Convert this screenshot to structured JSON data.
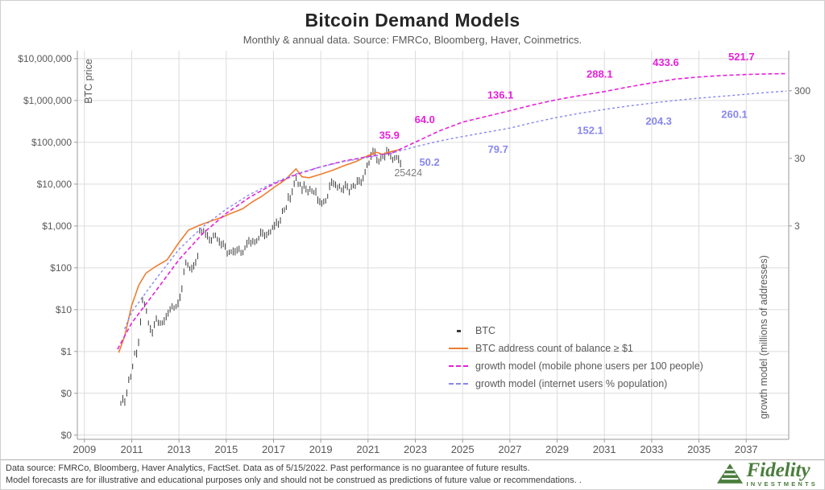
{
  "header": {
    "title": "Bitcoin Demand Models",
    "subtitle": "Monthly & annual data.  Source: FMRCo, Bloomberg, Haver, Coinmetrics."
  },
  "legend": {
    "items": [
      {
        "label": "BTC",
        "marker": "dot",
        "color": "#3a3a3a"
      },
      {
        "label": "BTC address count of balance ≥ $1",
        "marker": "solid",
        "color": "#ED7D31"
      },
      {
        "label": "growth model (mobile phone users per 100 people)",
        "marker": "dashed",
        "color": "#E621DB"
      },
      {
        "label": "growth model (internet users % population)",
        "marker": "dashed",
        "color": "#8787EF"
      }
    ]
  },
  "footer": {
    "line1": "Data source: FMRCo, Bloomberg, Haver Analytics, FactSet. Data as of 5/15/2022. Past performance is no guarantee of future results.",
    "line2": "Model forecasts are for illustrative and educational purposes only and should not be construed as predictions of future value or recommendations. .",
    "brand": {
      "name": "Fidelity",
      "sub": "INVESTMENTS",
      "color": "#4a7d3c"
    }
  },
  "chart_data": {
    "type": "line",
    "title": "Bitcoin Demand Models",
    "grid": true,
    "x_axis": {
      "range": [
        2008.7,
        2038.8
      ],
      "ticks": [
        2009,
        2011,
        2013,
        2015,
        2017,
        2019,
        2021,
        2023,
        2025,
        2027,
        2029,
        2031,
        2033,
        2035,
        2037
      ]
    },
    "left_axis": {
      "label": "BTC price",
      "log_range": [
        -2.1,
        7.19
      ],
      "ticks": [
        {
          "label": "$10,000,000",
          "value": 10000000
        },
        {
          "label": "$1,000,000",
          "value": 1000000
        },
        {
          "label": "$100,000",
          "value": 100000
        },
        {
          "label": "$10,000",
          "value": 10000
        },
        {
          "label": "$1,000",
          "value": 1000
        },
        {
          "label": "$100",
          "value": 100
        },
        {
          "label": "$10",
          "value": 10
        },
        {
          "label": "$1",
          "value": 1
        },
        {
          "label": "$0",
          "value": 0.1
        },
        {
          "label": "$0",
          "value": 0.01
        }
      ]
    },
    "right_axis": {
      "label": "growth model (millions of addresses)",
      "log_range": [
        -2.68,
        3.07
      ],
      "ticks": [
        {
          "label": "300",
          "value": 300
        },
        {
          "label": "30",
          "value": 30
        },
        {
          "label": "3",
          "value": 3
        }
      ]
    },
    "annotation": {
      "text": "25424",
      "year": 2022.7,
      "price": 15500
    },
    "series": [
      {
        "name": "BTC",
        "axis": "left",
        "style": "bars",
        "color": "#3a3a3a",
        "monthly": {
          "start_year": 2010.5417,
          "step": 0.0833333,
          "prices": [
            0.06,
            0.07,
            0.06,
            0.1,
            0.21,
            0.25,
            0.45,
            0.95,
            0.85,
            1.6,
            5.0,
            17,
            13.5,
            9.5,
            5.0,
            3.3,
            2.7,
            4.3,
            6.1,
            4.9,
            4.9,
            5.0,
            5.1,
            6.6,
            8.1,
            10.1,
            12.2,
            11.2,
            12.4,
            13.4,
            19,
            31,
            80,
            135,
            120,
            100,
            92,
            108,
            132,
            190,
            780,
            735,
            810,
            620,
            565,
            455,
            450,
            595,
            615,
            500,
            400,
            345,
            370,
            320,
            222,
            240,
            252,
            236,
            235,
            260,
            282,
            230,
            237,
            312,
            360,
            430,
            382,
            432,
            416,
            452,
            532,
            670,
            655,
            575,
            610,
            700,
            742,
            958,
            965,
            1190,
            1075,
            1350,
            2300,
            2480,
            2870,
            4700,
            4340,
            6470,
            10200,
            14100,
            10200,
            10300,
            6900,
            9240,
            7500,
            6400,
            7750,
            7000,
            6600,
            6300,
            4020,
            3740,
            3460,
            3850,
            4100,
            5320,
            8560,
            10800,
            10080,
            9600,
            8300,
            9150,
            7550,
            7200,
            9350,
            8550,
            6440,
            8620,
            9450,
            9140,
            11350,
            11650,
            10780,
            13800,
            19700,
            29000,
            33100,
            45200,
            58800,
            57750,
            37300,
            35040,
            41600,
            47150,
            43800,
            61300,
            57000,
            46200,
            38500,
            43200,
            45540,
            37650,
            30000
          ]
        }
      },
      {
        "name": "BTC address count of balance ≥ $1",
        "axis": "right",
        "style": "line",
        "color": "#ED7D31",
        "width": 1.6,
        "points": [
          [
            2010.45,
            0.04
          ],
          [
            2010.7,
            0.07
          ],
          [
            2011.0,
            0.2
          ],
          [
            2011.3,
            0.4
          ],
          [
            2011.6,
            0.6
          ],
          [
            2012.0,
            0.75
          ],
          [
            2012.5,
            0.95
          ],
          [
            2013.0,
            1.7
          ],
          [
            2013.4,
            2.6
          ],
          [
            2013.9,
            3.1
          ],
          [
            2014.3,
            3.5
          ],
          [
            2014.8,
            4.0
          ],
          [
            2015.2,
            4.6
          ],
          [
            2015.7,
            5.4
          ],
          [
            2016.1,
            6.8
          ],
          [
            2016.5,
            8.2
          ],
          [
            2017.0,
            11
          ],
          [
            2017.5,
            14.5
          ],
          [
            2017.95,
            21
          ],
          [
            2018.2,
            16
          ],
          [
            2018.5,
            15.5
          ],
          [
            2019.0,
            17.5
          ],
          [
            2019.5,
            20
          ],
          [
            2020.0,
            23.5
          ],
          [
            2020.5,
            27
          ],
          [
            2021.0,
            33
          ],
          [
            2021.35,
            37
          ],
          [
            2021.6,
            34.5
          ],
          [
            2022.0,
            38
          ],
          [
            2022.37,
            40.5
          ]
        ]
      },
      {
        "name": "growth model (mobile phone users per 100 people)",
        "axis": "right",
        "style": "dashed",
        "color": "#E621DB",
        "width": 1.6,
        "dash": "5 3",
        "label_dy": -18,
        "points": [
          [
            2010.4,
            0.045
          ],
          [
            2011,
            0.11
          ],
          [
            2012,
            0.32
          ],
          [
            2013,
            0.95
          ],
          [
            2014,
            2.3
          ],
          [
            2015,
            4.6
          ],
          [
            2016,
            8.0
          ],
          [
            2017,
            12.5
          ],
          [
            2018,
            17.5
          ],
          [
            2019,
            22.5
          ],
          [
            2020,
            27.5
          ],
          [
            2021,
            31.8
          ],
          [
            2022,
            35.9
          ],
          [
            2023,
            52
          ],
          [
            2024,
            76
          ],
          [
            2025,
            103
          ],
          [
            2026,
            125
          ],
          [
            2027,
            152
          ],
          [
            2028,
            186
          ],
          [
            2029,
            222
          ],
          [
            2030,
            256
          ],
          [
            2031,
            292
          ],
          [
            2032,
            340
          ],
          [
            2033,
            392
          ],
          [
            2034,
            446
          ],
          [
            2035,
            480
          ],
          [
            2036,
            505
          ],
          [
            2037,
            522
          ],
          [
            2038,
            533
          ],
          [
            2038.7,
            538
          ]
        ],
        "labels": [
          {
            "text": "35.9",
            "year": 2021.9
          },
          {
            "text": "64.0",
            "year": 2023.4
          },
          {
            "text": "136.1",
            "year": 2026.6
          },
          {
            "text": "288.1",
            "year": 2030.8
          },
          {
            "text": "433.6",
            "year": 2033.6
          },
          {
            "text": "521.7",
            "year": 2036.8
          }
        ]
      },
      {
        "name": "growth model (internet users % population)",
        "axis": "right",
        "style": "dashed",
        "color": "#8787EF",
        "width": 1.4,
        "dash": "3 3",
        "label_dy": 28,
        "points": [
          [
            2010.7,
            0.09
          ],
          [
            2011,
            0.16
          ],
          [
            2012,
            0.48
          ],
          [
            2013,
            1.35
          ],
          [
            2014,
            2.9
          ],
          [
            2015,
            5.3
          ],
          [
            2016,
            8.8
          ],
          [
            2017,
            13
          ],
          [
            2018,
            17.8
          ],
          [
            2019,
            22.5
          ],
          [
            2020,
            27
          ],
          [
            2021,
            31
          ],
          [
            2022,
            36
          ],
          [
            2023,
            44.5
          ],
          [
            2024,
            54
          ],
          [
            2025,
            63
          ],
          [
            2026,
            73
          ],
          [
            2027,
            84
          ],
          [
            2028,
            102
          ],
          [
            2029,
            121
          ],
          [
            2030,
            140
          ],
          [
            2031,
            159
          ],
          [
            2032,
            178
          ],
          [
            2033,
            197
          ],
          [
            2034,
            216
          ],
          [
            2035,
            233
          ],
          [
            2036,
            249
          ],
          [
            2037,
            267
          ],
          [
            2038,
            285
          ],
          [
            2038.7,
            297
          ]
        ],
        "labels": [
          {
            "text": "50.2",
            "year": 2023.6
          },
          {
            "text": "79.7",
            "year": 2026.5
          },
          {
            "text": "152.1",
            "year": 2030.4
          },
          {
            "text": "204.3",
            "year": 2033.3
          },
          {
            "text": "260.1",
            "year": 2036.5
          }
        ]
      }
    ]
  }
}
